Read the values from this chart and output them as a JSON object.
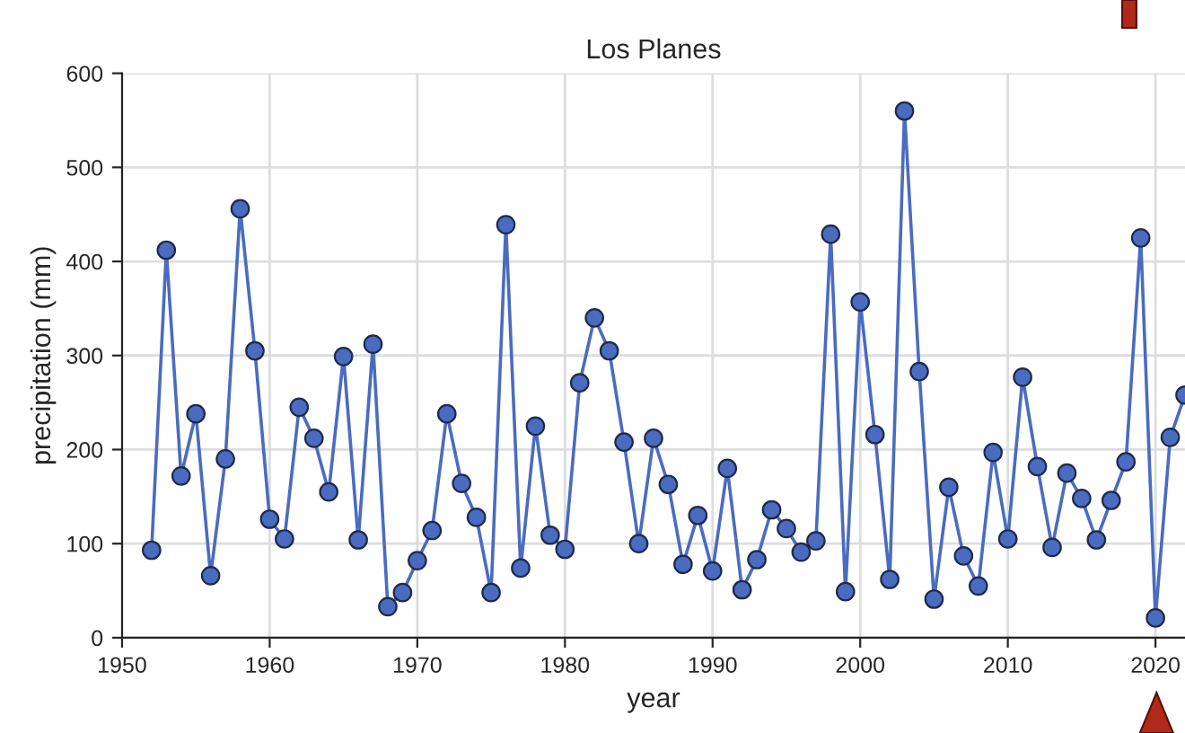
{
  "chart_data": {
    "type": "line",
    "title": "Los Planes",
    "xlabel": "year",
    "ylabel": "precipitation (mm)",
    "x": [
      1952,
      1953,
      1954,
      1955,
      1956,
      1957,
      1958,
      1959,
      1960,
      1961,
      1962,
      1963,
      1964,
      1965,
      1966,
      1967,
      1968,
      1969,
      1970,
      1971,
      1972,
      1973,
      1974,
      1975,
      1976,
      1977,
      1978,
      1979,
      1980,
      1981,
      1982,
      1983,
      1984,
      1985,
      1986,
      1987,
      1988,
      1989,
      1990,
      1991,
      1992,
      1993,
      1994,
      1995,
      1996,
      1997,
      1998,
      1999,
      2000,
      2001,
      2002,
      2003,
      2004,
      2005,
      2006,
      2007,
      2008,
      2009,
      2010,
      2011,
      2012,
      2013,
      2014,
      2015,
      2016,
      2017,
      2018,
      2019,
      2020,
      2021,
      2022
    ],
    "series": [
      {
        "color": "#4a6cc0",
        "values": [
          93,
          412,
          172,
          238,
          66,
          190,
          456,
          305,
          126,
          105,
          245,
          212,
          155,
          299,
          104,
          312,
          33,
          48,
          82,
          114,
          238,
          164,
          128,
          48,
          439,
          74,
          225,
          109,
          94,
          271,
          340,
          305,
          208,
          100,
          212,
          163,
          78,
          130,
          71,
          180,
          51,
          83,
          136,
          116,
          91,
          103,
          429,
          49,
          357,
          216,
          62,
          560,
          283,
          41,
          160,
          87,
          55,
          197,
          105,
          277,
          182,
          96,
          175,
          148,
          104,
          146,
          187,
          425,
          21,
          213,
          258
        ]
      }
    ],
    "marker": "circle",
    "line_style": "solid",
    "grid": true,
    "xlim": [
      1950,
      2022
    ],
    "xticks": [
      1950,
      1960,
      1970,
      1980,
      1990,
      2000,
      2010,
      2020
    ],
    "ylim": [
      0,
      600
    ],
    "yticks": [
      0,
      100,
      200,
      300,
      400,
      500,
      600
    ]
  }
}
